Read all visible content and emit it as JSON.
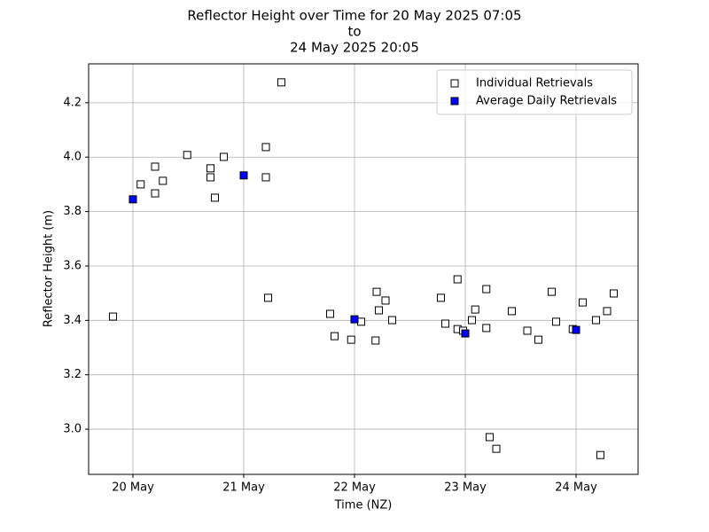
{
  "chart_data": {
    "type": "scatter",
    "title": [
      "Reflector Height over Time for 20 May 2025 07:05",
      "to",
      "24 May 2025 20:05"
    ],
    "x_label": "Time (NZ)",
    "y_label": "Reflector Height (m)",
    "xlim": [
      19.6,
      24.56
    ],
    "ylim": [
      2.834,
      4.343
    ],
    "xticks": [
      {
        "value": 20,
        "label": "20 May"
      },
      {
        "value": 21,
        "label": "21 May"
      },
      {
        "value": 22,
        "label": "22 May"
      },
      {
        "value": 23,
        "label": "23 May"
      },
      {
        "value": 24,
        "label": "24 May"
      }
    ],
    "yticks": [
      {
        "value": 3.0,
        "label": "3.0"
      },
      {
        "value": 3.2,
        "label": "3.2"
      },
      {
        "value": 3.4,
        "label": "3.4"
      },
      {
        "value": 3.6,
        "label": "3.6"
      },
      {
        "value": 3.8,
        "label": "3.8"
      },
      {
        "value": 4.0,
        "label": "4.0"
      },
      {
        "value": 4.2,
        "label": "4.2"
      }
    ],
    "grid": true,
    "legend": "upper right",
    "series": [
      {
        "name": "Individual Retrievals",
        "color": "#ffffff",
        "x": [
          19.82,
          20.07,
          20.2,
          20.2,
          20.27,
          20.49,
          20.7,
          20.7,
          20.74,
          20.82,
          21.2,
          21.2,
          21.22,
          21.34,
          21.78,
          21.82,
          21.97,
          22.06,
          22.19,
          22.2,
          22.22,
          22.28,
          22.34,
          22.78,
          22.82,
          22.93,
          22.93,
          22.98,
          23.06,
          23.09,
          23.19,
          23.19,
          23.22,
          23.28,
          23.42,
          23.56,
          23.66,
          23.78,
          23.82,
          23.97,
          24.06,
          24.18,
          24.22,
          24.28,
          24.34
        ],
        "values": [
          3.414,
          3.9,
          3.965,
          3.867,
          3.913,
          4.008,
          3.959,
          3.926,
          3.851,
          4.001,
          4.037,
          3.926,
          3.483,
          4.275,
          3.424,
          3.342,
          3.329,
          3.395,
          3.326,
          3.505,
          3.437,
          3.473,
          3.401,
          3.483,
          3.388,
          3.551,
          3.368,
          3.362,
          3.401,
          3.44,
          3.515,
          3.372,
          2.971,
          2.928,
          3.434,
          3.362,
          3.329,
          3.505,
          3.395,
          3.368,
          3.466,
          3.401,
          2.905,
          3.434,
          3.499
        ]
      },
      {
        "name": "Average Daily Retrievals",
        "color": "#0000ff",
        "x": [
          20.0,
          21.0,
          22.0,
          23.0,
          24.0
        ],
        "values": [
          3.845,
          3.933,
          3.404,
          3.352,
          3.365
        ]
      }
    ]
  }
}
